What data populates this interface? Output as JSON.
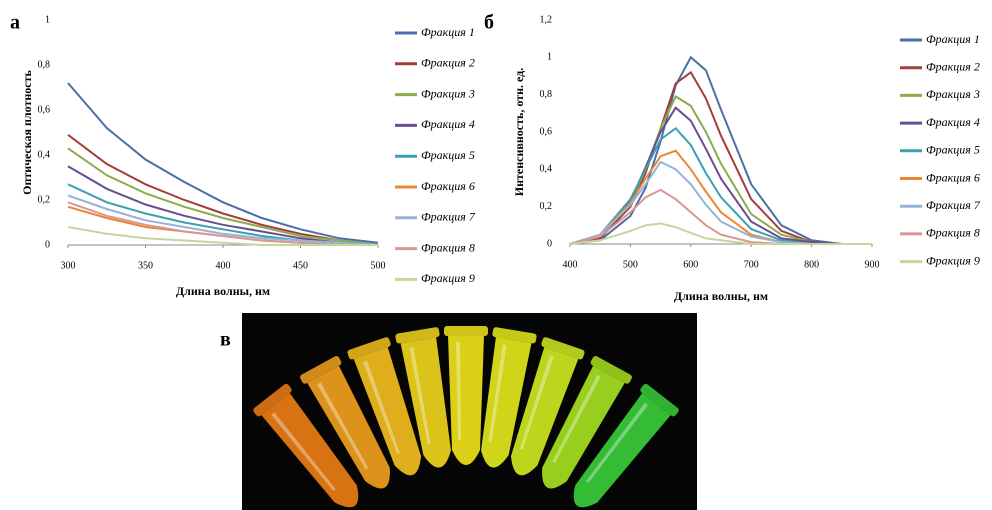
{
  "chart_data": [
    {
      "type": "line",
      "panel_label": "а",
      "xlabel": "Длина волны, нм",
      "ylabel": "Оптическая плотность",
      "x": [
        300,
        325,
        350,
        375,
        400,
        425,
        450,
        475,
        500
      ],
      "xlim": [
        300,
        500
      ],
      "xticks": [
        300,
        350,
        400,
        450,
        500
      ],
      "ylim": [
        0,
        1
      ],
      "yticks": [
        0,
        {
          "value": 0.2,
          "label": "0,2"
        },
        {
          "value": 0.4,
          "label": "0,4"
        },
        {
          "value": 0.6,
          "label": "0,6"
        },
        {
          "value": 0.8,
          "label": "0,8"
        },
        1
      ],
      "legend": "right",
      "series": [
        {
          "name": "Фракция 1",
          "color": "#4a6fa5",
          "values": [
            0.72,
            0.52,
            0.38,
            0.28,
            0.19,
            0.12,
            0.07,
            0.03,
            0.01
          ]
        },
        {
          "name": "Фракция 2",
          "color": "#a33d3a",
          "values": [
            0.49,
            0.36,
            0.27,
            0.2,
            0.14,
            0.09,
            0.05,
            0.02,
            0
          ]
        },
        {
          "name": "Фракция 3",
          "color": "#8aac4a",
          "values": [
            0.43,
            0.31,
            0.23,
            0.17,
            0.12,
            0.08,
            0.04,
            0.02,
            0
          ]
        },
        {
          "name": "Фракция 4",
          "color": "#6a4c93",
          "values": [
            0.35,
            0.25,
            0.18,
            0.13,
            0.09,
            0.06,
            0.03,
            0.01,
            0
          ]
        },
        {
          "name": "Фракция 5",
          "color": "#3aa0b4",
          "values": [
            0.27,
            0.19,
            0.14,
            0.1,
            0.07,
            0.04,
            0.02,
            0.01,
            0
          ]
        },
        {
          "name": "Фракция 6",
          "color": "#e8872f",
          "values": [
            0.17,
            0.12,
            0.08,
            0.06,
            0.04,
            0.02,
            0.01,
            0,
            0
          ]
        },
        {
          "name": "Фракция 7",
          "color": "#95b3d7",
          "values": [
            0.22,
            0.16,
            0.11,
            0.08,
            0.05,
            0.03,
            0.02,
            0.01,
            0
          ]
        },
        {
          "name": "Фракция 8",
          "color": "#d99694",
          "values": [
            0.19,
            0.13,
            0.09,
            0.06,
            0.04,
            0.02,
            0.01,
            0,
            0
          ]
        },
        {
          "name": "Фракция 9",
          "color": "#c3d69b",
          "values": [
            0.08,
            0.05,
            0.03,
            0.02,
            0.01,
            0,
            0,
            0,
            0
          ]
        }
      ]
    },
    {
      "type": "line",
      "panel_label": "б",
      "xlabel": "Длина волны, нм",
      "ylabel": "Интенсивность, отн. ед.",
      "x": [
        400,
        450,
        500,
        525,
        550,
        575,
        600,
        625,
        650,
        700,
        750,
        800,
        850,
        900
      ],
      "xlim": [
        400,
        900
      ],
      "xticks": [
        400,
        500,
        600,
        700,
        800,
        900
      ],
      "ylim": [
        0,
        1.2
      ],
      "yticks": [
        0,
        {
          "value": 0.2,
          "label": "0,2"
        },
        {
          "value": 0.4,
          "label": "0,4"
        },
        {
          "value": 0.6,
          "label": "0,6"
        },
        {
          "value": 0.8,
          "label": "0,8"
        },
        1,
        {
          "value": 1.2,
          "label": "1,2"
        }
      ],
      "legend": "right",
      "series": [
        {
          "name": "Фракция 1",
          "color": "#4a6fa5",
          "values": [
            0,
            0.02,
            0.15,
            0.3,
            0.55,
            0.85,
            1.0,
            0.93,
            0.72,
            0.32,
            0.1,
            0.02,
            0,
            0
          ]
        },
        {
          "name": "Фракция 2",
          "color": "#a33d3a",
          "values": [
            0,
            0.03,
            0.2,
            0.38,
            0.62,
            0.86,
            0.92,
            0.78,
            0.58,
            0.24,
            0.07,
            0.01,
            0,
            0
          ]
        },
        {
          "name": "Фракция 3",
          "color": "#8aac4a",
          "values": [
            0,
            0.04,
            0.22,
            0.4,
            0.62,
            0.79,
            0.74,
            0.6,
            0.43,
            0.16,
            0.05,
            0.01,
            0,
            0
          ]
        },
        {
          "name": "Фракция 4",
          "color": "#6a4c93",
          "values": [
            0,
            0.04,
            0.23,
            0.41,
            0.6,
            0.73,
            0.66,
            0.51,
            0.35,
            0.12,
            0.03,
            0.01,
            0,
            0
          ]
        },
        {
          "name": "Фракция 5",
          "color": "#3aa0b4",
          "values": [
            0,
            0.05,
            0.24,
            0.4,
            0.56,
            0.62,
            0.53,
            0.38,
            0.25,
            0.08,
            0.02,
            0,
            0,
            0
          ]
        },
        {
          "name": "Фракция 6",
          "color": "#e8872f",
          "values": [
            0,
            0.05,
            0.22,
            0.35,
            0.47,
            0.5,
            0.4,
            0.28,
            0.17,
            0.05,
            0.01,
            0,
            0,
            0
          ]
        },
        {
          "name": "Фракция 7",
          "color": "#95b3d7",
          "values": [
            0,
            0.05,
            0.21,
            0.32,
            0.44,
            0.4,
            0.32,
            0.21,
            0.12,
            0.04,
            0.01,
            0,
            0,
            0
          ]
        },
        {
          "name": "Фракция 8",
          "color": "#d99694",
          "values": [
            0,
            0.04,
            0.17,
            0.25,
            0.29,
            0.24,
            0.17,
            0.1,
            0.05,
            0.01,
            0,
            0,
            0,
            0
          ]
        },
        {
          "name": "Фракция 9",
          "color": "#c3d69b",
          "values": [
            0,
            0.02,
            0.07,
            0.1,
            0.11,
            0.09,
            0.06,
            0.03,
            0.02,
            0,
            0,
            0,
            0,
            0
          ]
        }
      ]
    }
  ],
  "photo": {
    "label": "в"
  }
}
